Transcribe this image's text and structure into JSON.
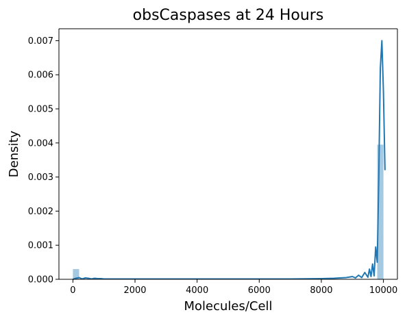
{
  "chart_data": {
    "type": "histogram+kde",
    "title": "obsCaspases at 24 Hours",
    "xlabel": "Molecules/Cell",
    "ylabel": "Density",
    "xlim": [
      -450,
      10450
    ],
    "ylim": [
      0,
      0.00735
    ],
    "xticks": [
      0,
      2000,
      4000,
      6000,
      8000,
      10000
    ],
    "xtick_labels": [
      "0",
      "2000",
      "4000",
      "6000",
      "8000",
      "10000"
    ],
    "yticks": [
      0.0,
      0.001,
      0.002,
      0.003,
      0.004,
      0.005,
      0.006,
      0.007
    ],
    "ytick_labels": [
      "0.000",
      "0.001",
      "0.002",
      "0.003",
      "0.004",
      "0.005",
      "0.006",
      "0.007"
    ],
    "histogram": {
      "color": "#1f77b4",
      "opacity": 0.4,
      "bins": [
        {
          "x0": 0,
          "x1": 200,
          "density": 0.0003
        },
        {
          "x0": 9800,
          "x1": 10000,
          "density": 0.00395
        }
      ]
    },
    "kde": {
      "color": "#1f77b4",
      "x": [
        0,
        100,
        200,
        300,
        400,
        500,
        600,
        700,
        800,
        900,
        1000,
        1500,
        2000,
        3000,
        4000,
        5000,
        6000,
        7000,
        8000,
        8400,
        8600,
        8800,
        9000,
        9100,
        9200,
        9300,
        9400,
        9500,
        9550,
        9600,
        9650,
        9700,
        9750,
        9800,
        9850,
        9900,
        9950,
        10000,
        10050
      ],
      "y": [
        0.0,
        3e-05,
        5e-05,
        1e-05,
        4e-05,
        3e-05,
        1e-05,
        3e-05,
        2e-05,
        2e-05,
        1e-05,
        1e-05,
        1e-05,
        1e-05,
        1e-05,
        1e-05,
        1e-05,
        1e-05,
        2e-05,
        3e-05,
        4e-05,
        5e-05,
        8e-05,
        4e-05,
        0.00012,
        5e-05,
        0.0002,
        6e-05,
        0.0003,
        8e-05,
        0.00045,
        0.0001,
        0.00095,
        0.0005,
        0.003,
        0.0062,
        0.007,
        0.0055,
        0.0032
      ]
    }
  }
}
